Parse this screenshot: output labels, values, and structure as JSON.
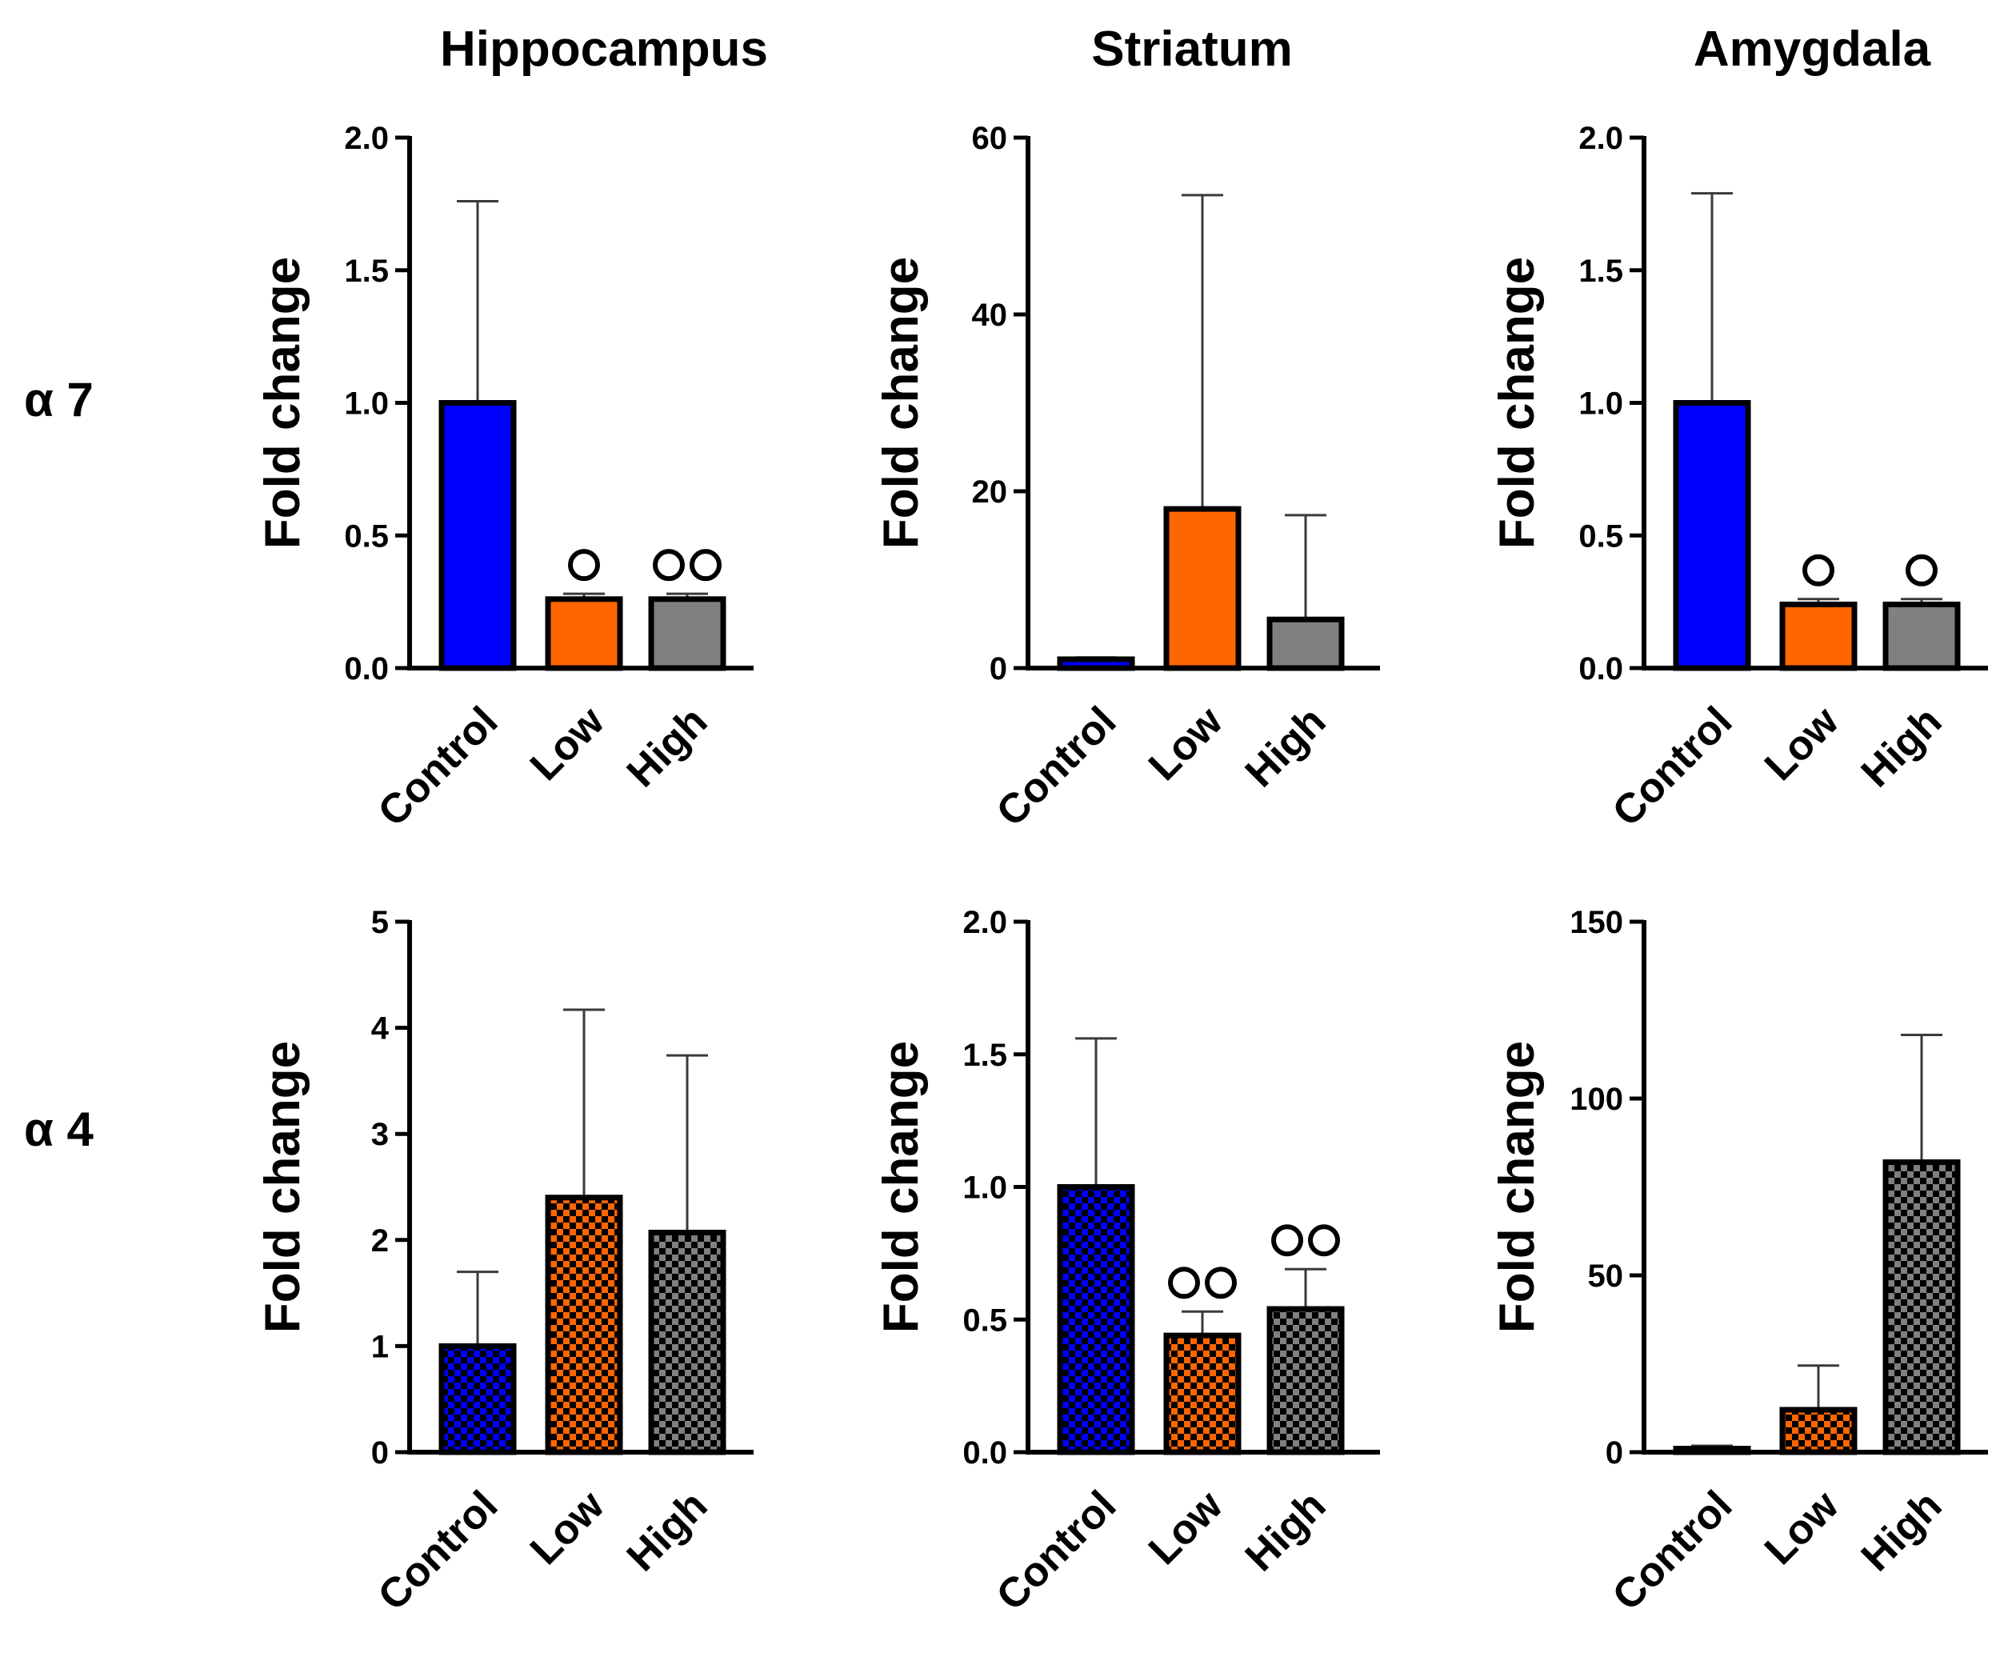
{
  "figure": {
    "column_titles": [
      "Hippocampus",
      "Striatum",
      "Amygdala"
    ],
    "row_labels": [
      "α 7",
      "α 4"
    ]
  },
  "colors": {
    "Control": "#0000ff",
    "Low": "#ff6600",
    "High": "#808080"
  },
  "chart_data": [
    {
      "type": "bar",
      "row": 0,
      "col": 0,
      "title": "Hippocampus",
      "ylabel": "Fold change",
      "categories": [
        "Control",
        "Low",
        "High"
      ],
      "values": [
        1.0,
        0.26,
        0.26
      ],
      "errors_upper": [
        1.76,
        0.28,
        0.28
      ],
      "significance": [
        "",
        "○",
        "○○"
      ],
      "ylim": [
        0,
        2.0
      ],
      "yticks": [
        "0.0",
        "0.5",
        "1.0",
        "1.5",
        "2.0"
      ],
      "pattern": "solid"
    },
    {
      "type": "bar",
      "row": 0,
      "col": 1,
      "title": "Striatum",
      "ylabel": "Fold change",
      "categories": [
        "Control",
        "Low",
        "High"
      ],
      "values": [
        1.0,
        18.0,
        5.5
      ],
      "errors_upper": [
        1.2,
        53.5,
        17.3
      ],
      "significance": [
        "",
        "",
        ""
      ],
      "ylim": [
        0,
        60
      ],
      "yticks": [
        "0",
        "20",
        "40",
        "60"
      ],
      "pattern": "solid"
    },
    {
      "type": "bar",
      "row": 0,
      "col": 2,
      "title": "Amygdala",
      "ylabel": "Fold change",
      "categories": [
        "Control",
        "Low",
        "High"
      ],
      "values": [
        1.0,
        0.24,
        0.24
      ],
      "errors_upper": [
        1.79,
        0.26,
        0.26
      ],
      "significance": [
        "",
        "○",
        "○"
      ],
      "ylim": [
        0,
        2.0
      ],
      "yticks": [
        "0.0",
        "0.5",
        "1.0",
        "1.5",
        "2.0"
      ],
      "pattern": "solid"
    },
    {
      "type": "bar",
      "row": 1,
      "col": 0,
      "title": "Hippocampus",
      "ylabel": "Fold change",
      "categories": [
        "Control",
        "Low",
        "High"
      ],
      "values": [
        1.0,
        2.4,
        2.07
      ],
      "errors_upper": [
        1.7,
        4.17,
        3.74
      ],
      "significance": [
        "",
        "",
        ""
      ],
      "ylim": [
        0,
        5
      ],
      "yticks": [
        "0",
        "1",
        "2",
        "3",
        "4",
        "5"
      ],
      "pattern": "checker"
    },
    {
      "type": "bar",
      "row": 1,
      "col": 1,
      "title": "Striatum",
      "ylabel": "Fold change",
      "categories": [
        "Control",
        "Low",
        "High"
      ],
      "values": [
        1.0,
        0.44,
        0.54
      ],
      "errors_upper": [
        1.56,
        0.53,
        0.69
      ],
      "significance": [
        "",
        "○○",
        "○○"
      ],
      "ylim": [
        0,
        2.0
      ],
      "yticks": [
        "0.0",
        "0.5",
        "1.0",
        "1.5",
        "2.0"
      ],
      "pattern": "checker"
    },
    {
      "type": "bar",
      "row": 1,
      "col": 2,
      "title": "Amygdala",
      "ylabel": "Fold change",
      "categories": [
        "Control",
        "Low",
        "High"
      ],
      "values": [
        1.0,
        12.0,
        82.0
      ],
      "errors_upper": [
        1.8,
        24.5,
        118.0
      ],
      "significance": [
        "",
        "",
        ""
      ],
      "ylim": [
        0,
        150
      ],
      "yticks": [
        "0",
        "50",
        "100",
        "150"
      ],
      "pattern": "checker"
    }
  ]
}
